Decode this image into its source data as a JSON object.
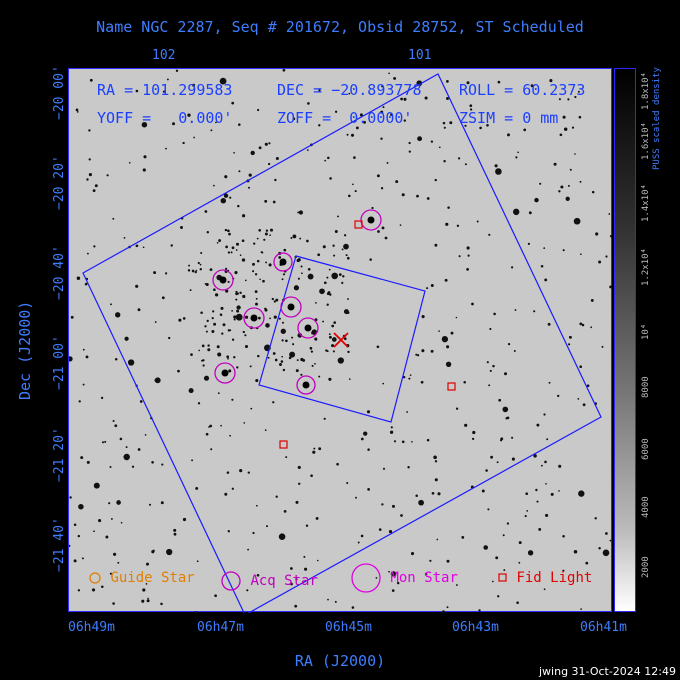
{
  "title": "Name NGC 2287, Seq # 201672, Obsid 28752, ST Scheduled",
  "top_ticks": [
    "102",
    "101"
  ],
  "info": {
    "ra": "RA = 101.299583",
    "dec": "DEC = −20.893778",
    "roll": "ROLL = 60.2373",
    "yoff": "YOFF =   0.000'",
    "zoff": "ZOFF =  0.0000'",
    "zsim": "ZSIM = 0 mm"
  },
  "y_axis": {
    "label": "Dec (J2000)",
    "ticks": [
      "−20 00'",
      "−20 20'",
      "−20 40'",
      "−21 00'",
      "−21 20'",
      "−21 40'"
    ]
  },
  "x_axis": {
    "label": "RA (J2000)",
    "ticks": [
      "06h49m",
      "06h47m",
      "06h45m",
      "06h43m",
      "06h41m"
    ]
  },
  "colorbar": {
    "label": "PUSS scaled density",
    "ticks": [
      "1.8x10⁴",
      "1.6x10⁴",
      "1.4x10⁴",
      "1.2x10⁴",
      "10⁴",
      "8000",
      "6000",
      "4000",
      "2000"
    ]
  },
  "legend": {
    "guide": "Guide Star",
    "acq": "Acq Star",
    "mon": "Mon Star",
    "fid": "Fid Light"
  },
  "colors": {
    "axis": "#3f7dff",
    "field": "#1b1bff",
    "acq": "#c000c0",
    "fid": "#e00000",
    "guide": "#e08000"
  },
  "footer": "jwing 31-Oct-2024 12:49"
}
